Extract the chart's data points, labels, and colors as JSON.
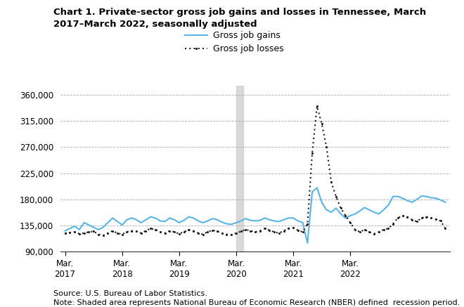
{
  "source": "Source: U.S. Bureau of Labor Statistics.",
  "note": "Note: Shaded area represents National Bureau of Economic Research (NBER) defined  recession period.",
  "legend_gains": "Gross job gains",
  "legend_losses": "Gross job losses",
  "gains_color": "#5ab4e5",
  "losses_color": "#1a1a1a",
  "background_color": "#ffffff",
  "ylim": [
    90000,
    375000
  ],
  "yticks": [
    90000,
    135000,
    180000,
    225000,
    270000,
    315000,
    360000
  ],
  "recession_start": 36,
  "recession_end": 37.5,
  "gains": [
    126000,
    130000,
    134000,
    128000,
    140000,
    136000,
    132000,
    128000,
    132000,
    140000,
    148000,
    142000,
    136000,
    145000,
    148000,
    145000,
    140000,
    145000,
    150000,
    148000,
    143000,
    142000,
    148000,
    145000,
    140000,
    144000,
    150000,
    148000,
    143000,
    140000,
    143000,
    147000,
    145000,
    141000,
    138000,
    137000,
    140000,
    143000,
    147000,
    144000,
    143000,
    144000,
    148000,
    145000,
    143000,
    142000,
    145000,
    148000,
    148000,
    143000,
    140000,
    105000,
    193000,
    200000,
    175000,
    162000,
    158000,
    165000,
    155000,
    148000,
    152000,
    155000,
    160000,
    166000,
    162000,
    158000,
    155000,
    162000,
    170000,
    185000,
    185000,
    182000,
    178000,
    175000,
    180000,
    186000,
    185000,
    183000,
    182000,
    179000,
    175000
  ],
  "losses": [
    122000,
    123000,
    124000,
    121000,
    122000,
    124000,
    125000,
    120000,
    118000,
    122000,
    126000,
    122000,
    120000,
    124000,
    126000,
    125000,
    122000,
    126000,
    130000,
    128000,
    124000,
    122000,
    126000,
    124000,
    121000,
    124000,
    128000,
    126000,
    122000,
    120000,
    124000,
    127000,
    125000,
    122000,
    120000,
    119000,
    122000,
    125000,
    128000,
    126000,
    124000,
    126000,
    130000,
    127000,
    124000,
    122000,
    126000,
    130000,
    131000,
    127000,
    124000,
    138000,
    260000,
    340000,
    310000,
    270000,
    210000,
    185000,
    165000,
    152000,
    140000,
    128000,
    124000,
    128000,
    124000,
    121000,
    124000,
    128000,
    130000,
    138000,
    148000,
    152000,
    150000,
    145000,
    142000,
    148000,
    150000,
    148000,
    146000,
    143000,
    130000
  ],
  "x_tick_positions": [
    0,
    12,
    24,
    36,
    48,
    60
  ],
  "x_tick_labels": [
    "Mar.\n2017",
    "Mar.\n2018",
    "Mar.\n2019",
    "Mar.\n2020",
    "Mar.\n2021",
    "Mar.\n2022"
  ],
  "title_line1": "Chart 1. Private-sector gross job gains and losses in Tennessee, March",
  "title_line2": "2017–March 2022, seasonally adjusted"
}
